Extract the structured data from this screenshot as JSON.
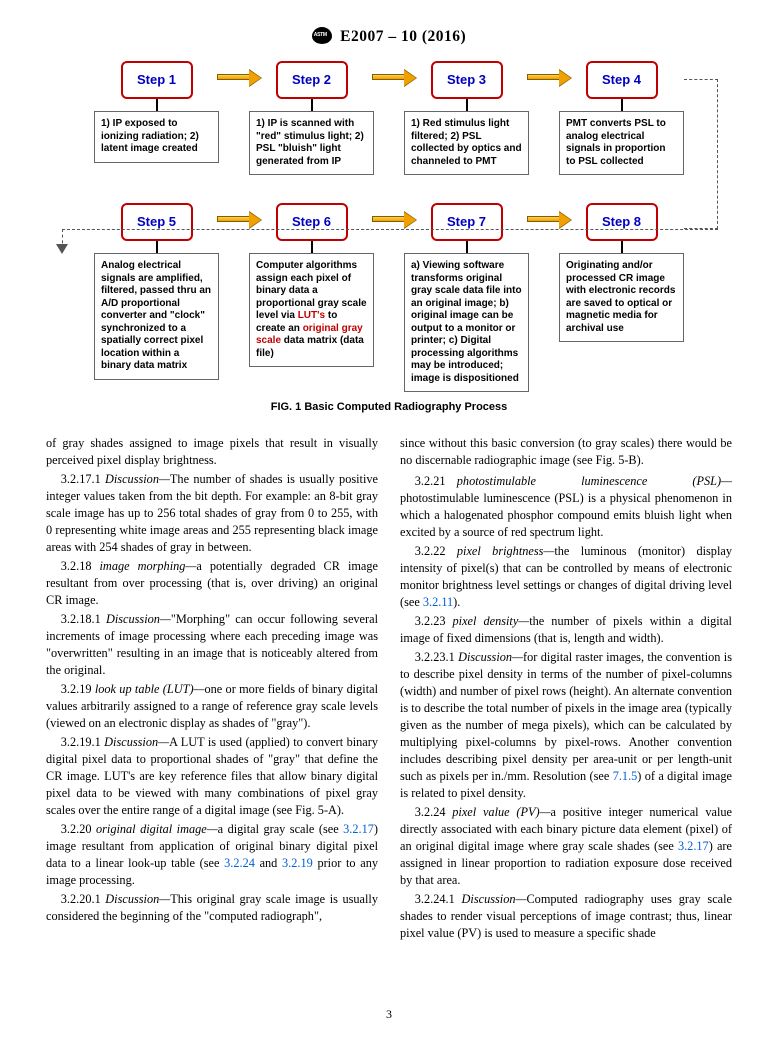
{
  "header": {
    "designation": "E2007 – 10 (2016)"
  },
  "flowchart": {
    "caption": "FIG. 1 Basic Computed Radiography Process",
    "row1": {
      "steps": [
        "Step 1",
        "Step 2",
        "Step 3",
        "Step 4"
      ],
      "descs": [
        "1) IP exposed to ionizing radiation; 2) latent image created",
        "1) IP is scanned with \"red\" stimulus light; 2) PSL \"bluish\" light generated from IP",
        "1) Red stimulus light filtered; 2) PSL collected by optics and channeled to PMT",
        "PMT converts PSL to analog electrical signals in proportion to PSL collected"
      ]
    },
    "row2": {
      "steps": [
        "Step 5",
        "Step 6",
        "Step 7",
        "Step 8"
      ],
      "descs": [
        "Analog electrical signals are amplified, filtered, passed thru an A/D proportional converter and \"clock\" synchronized to a spatially correct pixel location within a binary data matrix",
        "Computer algorithms assign each pixel of binary data a proportional gray scale level via <span class=\"red\">LUT's</span> to create an <span class=\"red\">original gray scale</span> data matrix (data file)",
        "a) Viewing software transforms original gray scale data file into an original image; b) original image can be output to a monitor or printer; c) Digital processing algorithms may be introduced; image is dispositioned",
        "Originating and/or processed CR image with electronic records are saved to optical or magnetic media for archival use"
      ]
    },
    "style": {
      "step_border": "#c00000",
      "step_text": "#0000c0",
      "arrow_fill": "#f0a000",
      "arrow_gradient_top": "#ffd050",
      "arrow_border": "#806000",
      "dashed_color": "#555555",
      "desc_border": "#666666",
      "fontsize_step": 13,
      "fontsize_desc": 10
    }
  },
  "left_col": {
    "p0": "of gray shades assigned to image pixels that result in visually perceived pixel display brightness.",
    "p1_num": "3.2.17.1 ",
    "p1_head": "Discussion—",
    "p1": "The number of shades is usually positive integer values taken from the bit depth. For example: an 8-bit gray scale image has up to 256 total shades of gray from 0 to 255, with 0 representing white image areas and 255 representing black image areas with 254 shades of gray in between.",
    "p2_num": "3.2.18 ",
    "p2_head": "image morphing—",
    "p2": "a potentially degraded CR image resultant from over processing (that is, over driving) an original CR image.",
    "p3_num": "3.2.18.1 ",
    "p3_head": "Discussion—",
    "p3": "\"Morphing\" can occur following several increments of image processing where each preceding image was \"overwritten\" resulting in an image that is noticeably altered from the original.",
    "p4_num": "3.2.19 ",
    "p4_head": "look up table (LUT)—",
    "p4": "one or more fields of binary digital values arbitrarily assigned to a range of reference gray scale levels (viewed on an electronic display as shades of \"gray\").",
    "p5_num": "3.2.19.1 ",
    "p5_head": "Discussion—",
    "p5": "A LUT is used (applied) to convert binary digital pixel data to proportional shades of \"gray\" that define the CR image. LUT's are key reference files that allow binary digital pixel data to be viewed with many combinations of pixel gray scales over the entire range of a digital image (see Fig. 5-A).",
    "p6_num": "3.2.20 ",
    "p6_head": "original digital image—",
    "p6a": "a digital gray scale (see ",
    "p6link1": "3.2.17",
    "p6b": ") image resultant from application of original binary digital pixel data to a linear look-up table (see ",
    "p6link2": "3.2.24",
    "p6c": " and ",
    "p6link3": "3.2.19",
    "p6d": " prior to any image processing.",
    "p7_num": "3.2.20.1 ",
    "p7_head": "Discussion—",
    "p7": "This original gray scale image is usually considered the beginning of the \"computed radiograph\","
  },
  "right_col": {
    "p0": "since without this basic conversion (to gray scales) there would be no discernable radiographic image (see Fig. 5-B).",
    "p1_num": "3.2.21 ",
    "p1_head": "photostimulable    luminescence    (PSL)—",
    "p1": "photostimulable luminescence (PSL) is a physical phenomenon in which a halogenated phosphor compound emits bluish light when excited by a source of red spectrum light.",
    "p2_num": "3.2.22 ",
    "p2_head": "pixel brightness—",
    "p2a": "the luminous (monitor) display intensity of pixel(s) that can be controlled by means of electronic monitor brightness level settings or changes of digital driving level (see ",
    "p2link": "3.2.11",
    "p2b": ").",
    "p3_num": "3.2.23 ",
    "p3_head": "pixel density—",
    "p3": "the number of pixels within a digital image of fixed dimensions (that is, length and width).",
    "p4_num": "3.2.23.1 ",
    "p4_head": "Discussion—",
    "p4a": "for digital raster images, the convention is to describe pixel density in terms of the number of pixel-columns (width) and number of pixel rows (height). An alternate convention is to describe the total number of pixels in the image area (typically given as the number of mega pixels), which can be calculated by multiplying pixel-columns by pixel-rows. Another convention includes describing pixel density per area-unit or per length-unit such as pixels per in./mm. Resolution (see ",
    "p4link": "7.1.5",
    "p4b": ") of a digital image is related to pixel density.",
    "p5_num": "3.2.24 ",
    "p5_head": "pixel value (PV)—",
    "p5a": "a positive integer numerical value directly associated with each binary picture data element (pixel) of an original digital image where gray scale shades (see ",
    "p5link": "3.2.17",
    "p5b": ") are assigned in linear proportion to radiation exposure dose received by that area.",
    "p6_num": "3.2.24.1 ",
    "p6_head": "Discussion—",
    "p6": "Computed radiography uses gray scale shades to render visual perceptions of image contrast; thus, linear pixel value (PV) is used to measure a specific shade"
  },
  "page_number": "3",
  "colors": {
    "link_blue": "#0060d8",
    "ref_red": "#c00000",
    "text": "#000000",
    "background": "#ffffff"
  }
}
